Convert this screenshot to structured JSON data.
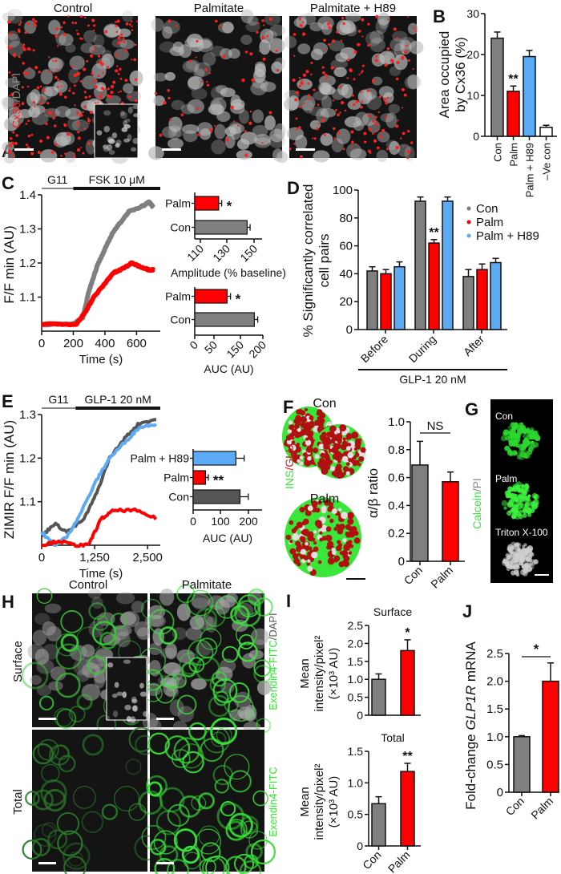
{
  "colors": {
    "con": "#7f7f7f",
    "con_dark": "#555555",
    "palm": "#ff0000",
    "h89": "#5aaaf5",
    "neg": "#ffffff",
    "green": "#39e639",
    "red": "#d8191c"
  },
  "panel_letters": [
    "A",
    "B",
    "C",
    "D",
    "E",
    "F",
    "G",
    "H",
    "I",
    "J"
  ],
  "panel_a": {
    "titles": [
      "Control",
      "Palmitate",
      "Palmitate + H89"
    ],
    "stain_cx36": "Cx36",
    "stain_sep": "/",
    "stain_dapi": "DAPI"
  },
  "panel_f": {
    "con": "Con",
    "palm": "Palm",
    "ins": "INS",
    "sep": "/",
    "glu": "GLU"
  },
  "panel_g": {
    "labels": [
      "Con",
      "Palm",
      "Triton X-100"
    ],
    "calcein": "Calcein",
    "sep": "/",
    "pi": "PI"
  },
  "panel_h": {
    "col_titles": [
      "Control",
      "Palmitate"
    ],
    "row_titles": [
      "Surface",
      "Total"
    ],
    "stain_top_green": "Exendin4-FITC",
    "stain_top_rest": "/DAPI",
    "stain_bottom": "Exendin4-FITC"
  },
  "chart_data": [
    {
      "id": "B",
      "type": "bar",
      "ylabel": [
        "Area occupied",
        "by Cx36 (%)"
      ],
      "ylim": [
        0,
        30
      ],
      "yticks": [
        "0",
        "10",
        "20",
        "30"
      ],
      "categories": [
        "Con",
        "Palm",
        "Palm + H89",
        "–Ve con"
      ],
      "values": [
        24,
        11,
        19.5,
        2.2
      ],
      "errors": [
        1.5,
        1.3,
        1.5,
        0.5
      ],
      "annotations": [
        "",
        "**",
        "",
        ""
      ]
    },
    {
      "id": "C_trace",
      "type": "line",
      "xlabel": "Time (s)",
      "ylabel": "F/F min (AU)",
      "xlim": [
        0,
        750
      ],
      "ylim": [
        1.0,
        1.4
      ],
      "xticks": [
        "0",
        "200",
        "400",
        "600"
      ],
      "yticks": [
        "1.1",
        "1.2",
        "1.3",
        "1.4"
      ],
      "stimulus": [
        {
          "label": "G11",
          "from": 0,
          "to": 200
        },
        {
          "label": "FSK 10 μM",
          "from": 200,
          "to": 750
        }
      ],
      "series": [
        {
          "name": "Con",
          "x": [
            0,
            200,
            260,
            300,
            350,
            400,
            450,
            500,
            550,
            600,
            650,
            680,
            710
          ],
          "y": [
            1.02,
            1.02,
            1.04,
            1.12,
            1.19,
            1.24,
            1.29,
            1.32,
            1.35,
            1.36,
            1.37,
            1.38,
            1.36
          ]
        },
        {
          "name": "Palm",
          "x": [
            0,
            220,
            280,
            330,
            400,
            450,
            500,
            570,
            620,
            680,
            710
          ],
          "y": [
            1.02,
            1.02,
            1.06,
            1.1,
            1.14,
            1.17,
            1.18,
            1.2,
            1.19,
            1.18,
            1.18
          ]
        }
      ]
    },
    {
      "id": "C_amp",
      "type": "bar",
      "orientation": "horizontal",
      "xlabel": "Amplitude (% baseline)",
      "xlim": [
        105,
        150
      ],
      "xticks": [
        "110",
        "130",
        "150"
      ],
      "categories": [
        "Palm",
        "Con"
      ],
      "values": [
        121,
        140
      ],
      "errors": [
        2,
        2
      ],
      "annotations": [
        "*",
        ""
      ]
    },
    {
      "id": "C_auc",
      "type": "bar",
      "orientation": "horizontal",
      "xlabel": "AUC (AU)",
      "xlim": [
        0,
        200
      ],
      "xticks": [
        "0",
        "50",
        "150",
        "200"
      ],
      "categories": [
        "Palm",
        "Con"
      ],
      "values": [
        95,
        175
      ],
      "errors": [
        10,
        10
      ],
      "annotations": [
        "*",
        ""
      ]
    },
    {
      "id": "D",
      "type": "bar",
      "ylabel": [
        "% Significantly correlated",
        "cell pairs"
      ],
      "ylim": [
        0,
        100
      ],
      "yticks": [
        "0",
        "20",
        "40",
        "60",
        "80",
        "100"
      ],
      "categories": [
        "Before",
        "During",
        "After"
      ],
      "group_label": "GLP-1 20 nM",
      "series": [
        {
          "name": "Con",
          "values": [
            42,
            92,
            38
          ],
          "errors": [
            3,
            3,
            5
          ]
        },
        {
          "name": "Palm",
          "values": [
            40,
            62,
            43
          ],
          "errors": [
            3,
            2.5,
            4
          ]
        },
        {
          "name": "Palm + H89",
          "values": [
            45,
            92,
            48
          ],
          "errors": [
            3.5,
            3,
            3
          ]
        }
      ],
      "annotations": [
        {
          "series": "Palm",
          "category": "During",
          "text": "**"
        }
      ],
      "legend": "top-right"
    },
    {
      "id": "E_trace",
      "type": "line",
      "xlabel": "Time (s)",
      "ylabel": "ZIMIR F/F min (AU)",
      "xlim": [
        0,
        2800
      ],
      "ylim": [
        1.0,
        1.3
      ],
      "xticks": [
        "0",
        "1,250",
        "2,500"
      ],
      "yticks": [
        "1.1",
        "1.2",
        "1.3"
      ],
      "stimulus": [
        {
          "label": "G11",
          "from": 0,
          "to": 800
        },
        {
          "label": "GLP-1 20 nM",
          "from": 800,
          "to": 2800
        }
      ],
      "series": [
        {
          "name": "Con",
          "x": [
            0,
            300,
            600,
            1000,
            1300,
            1600,
            2000,
            2300,
            2750
          ],
          "y": [
            1.02,
            1.05,
            1.03,
            1.06,
            1.12,
            1.2,
            1.25,
            1.28,
            1.29
          ]
        },
        {
          "name": "Palm + H89",
          "x": [
            0,
            300,
            600,
            900,
            1300,
            1600,
            2000,
            2300,
            2750
          ],
          "y": [
            1.03,
            1.0,
            1.02,
            1.07,
            1.15,
            1.2,
            1.24,
            1.27,
            1.28
          ]
        },
        {
          "name": "Palm",
          "x": [
            0,
            400,
            800,
            1100,
            1400,
            1700,
            2200,
            2750
          ],
          "y": [
            1.0,
            1.01,
            1.0,
            1.0,
            1.06,
            1.08,
            1.08,
            1.06
          ]
        }
      ]
    },
    {
      "id": "E_auc",
      "type": "bar",
      "orientation": "horizontal",
      "xlabel": "AUC (AU)",
      "xlim": [
        0,
        250
      ],
      "xticks": [
        "0",
        "100",
        "200"
      ],
      "categories": [
        "Palm + H89",
        "Palm",
        "Con"
      ],
      "values": [
        155,
        45,
        170
      ],
      "errors": [
        30,
        10,
        30
      ],
      "annotations": [
        "",
        "**",
        ""
      ]
    },
    {
      "id": "F",
      "type": "bar",
      "ylabel": "α/β ratio",
      "ylim": [
        0,
        1.0
      ],
      "yticks": [
        "0",
        "0.2",
        "0.4",
        "0.6",
        "0.8",
        "1.0"
      ],
      "categories": [
        "Con",
        "Palm"
      ],
      "values": [
        0.69,
        0.57
      ],
      "errors": [
        0.17,
        0.07
      ],
      "bracket": "NS"
    },
    {
      "id": "I_surface",
      "type": "bar",
      "title": "Surface",
      "ylabel": [
        "Mean",
        "intensity/pixel²",
        "(×10³ AU)"
      ],
      "ylim": [
        0,
        2.5
      ],
      "yticks": [
        "0",
        "0.5",
        "1.0",
        "1.5",
        "2.0",
        "2.5"
      ],
      "categories": [
        "Con",
        "Palm"
      ],
      "values": [
        1.0,
        1.8
      ],
      "errors": [
        0.15,
        0.3
      ],
      "annotations": [
        "",
        "*"
      ]
    },
    {
      "id": "I_total",
      "type": "bar",
      "title": "Total",
      "ylabel": [
        "Mean",
        "intensity/pixel²",
        "(×10³ AU)"
      ],
      "ylim": [
        0,
        1.5
      ],
      "yticks": [
        "0",
        "0.5",
        "1.0",
        "1.5"
      ],
      "categories": [
        "Con",
        "Palm"
      ],
      "values": [
        0.67,
        1.18
      ],
      "errors": [
        0.11,
        0.13
      ],
      "annotations": [
        "",
        "**"
      ]
    },
    {
      "id": "J",
      "type": "bar",
      "ylabel_pre": "Fold-change ",
      "ylabel_italic": "GLP1R",
      "ylabel_post": " mRNA",
      "ylim": [
        0,
        2.5
      ],
      "yticks": [
        "0",
        "0.5",
        "1.0",
        "1.5",
        "2.0",
        "2.5"
      ],
      "categories": [
        "Con",
        "Palm"
      ],
      "values": [
        1.0,
        2.0
      ],
      "errors": [
        0.02,
        0.33
      ],
      "bracket": "*"
    }
  ]
}
